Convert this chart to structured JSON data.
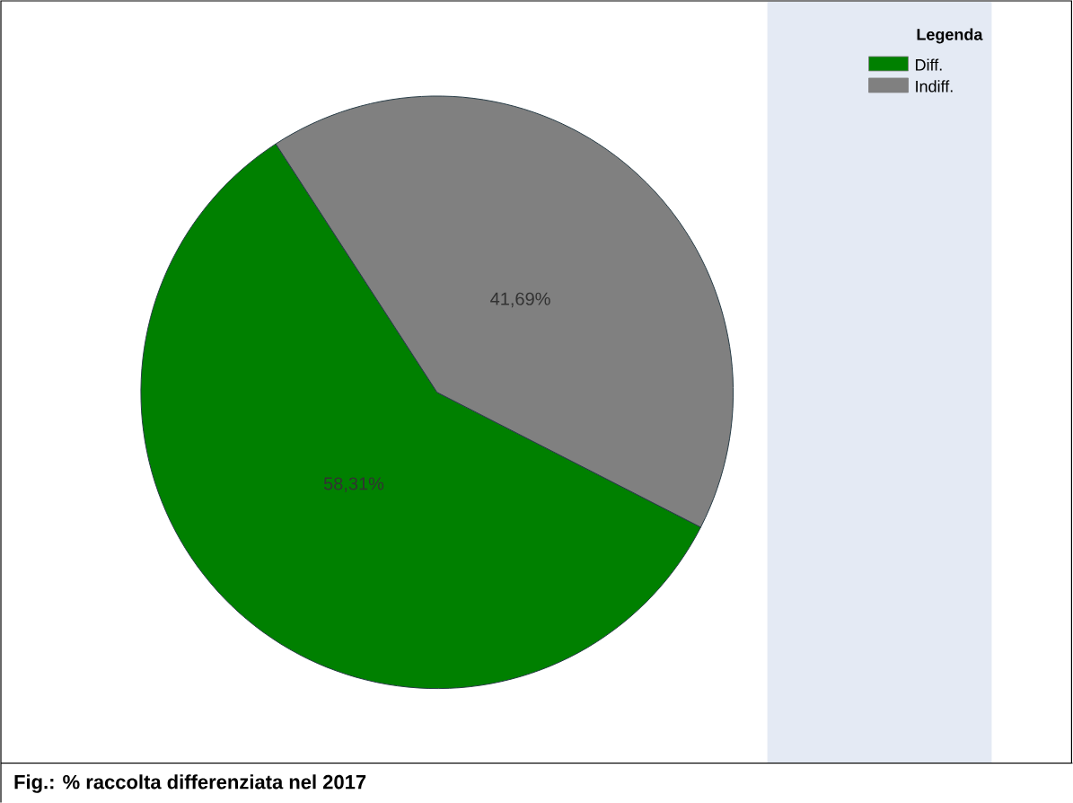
{
  "chart_data": {
    "type": "pie",
    "title": "Fig.: % raccolta differenziata nel 2017",
    "legend_title": "Legenda",
    "legend": "top right",
    "categories": [
      "Diff.",
      "Indiff."
    ],
    "values": [
      58.31,
      41.69
    ],
    "colors": [
      "#008000",
      "#808080"
    ],
    "value_labels": [
      "58,31%",
      "41,69%"
    ]
  }
}
